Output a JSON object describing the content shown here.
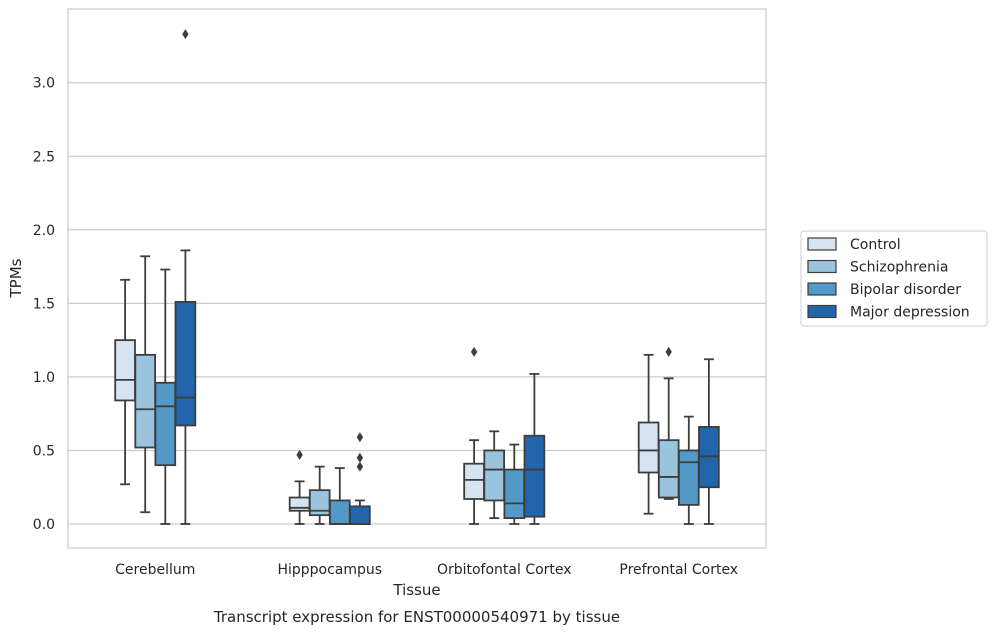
{
  "chart_data": {
    "type": "boxplot",
    "title": "",
    "caption": "Transcript expression for ENST00000540971 by tissue",
    "xlabel": "Tissue",
    "ylabel": "TPMs",
    "ylim": [
      -0.16,
      3.5
    ],
    "yticks": [
      0.0,
      0.5,
      1.0,
      1.5,
      2.0,
      2.5,
      3.0
    ],
    "ytick_labels": [
      "0.0",
      "0.5",
      "1.0",
      "1.5",
      "2.0",
      "2.5",
      "3.0"
    ],
    "grid": "horizontal",
    "legend_position": "right",
    "categories": [
      "Cerebellum",
      "Hipppocampus",
      "Orbitofontal Cortex",
      "Prefrontal Cortex"
    ],
    "series": [
      {
        "name": "Control",
        "color": "#d6e4f2",
        "boxes": [
          {
            "whislo": 0.27,
            "q1": 0.84,
            "med": 0.98,
            "q3": 1.25,
            "whishi": 1.66,
            "fliers": []
          },
          {
            "whislo": 0.0,
            "q1": 0.09,
            "med": 0.11,
            "q3": 0.18,
            "whishi": 0.29,
            "fliers": [
              0.47
            ]
          },
          {
            "whislo": 0.0,
            "q1": 0.17,
            "med": 0.3,
            "q3": 0.41,
            "whishi": 0.57,
            "fliers": [
              1.17
            ]
          },
          {
            "whislo": 0.07,
            "q1": 0.35,
            "med": 0.5,
            "q3": 0.69,
            "whishi": 1.15,
            "fliers": []
          }
        ]
      },
      {
        "name": "Schizophrenia",
        "color": "#9ac3de",
        "boxes": [
          {
            "whislo": 0.08,
            "q1": 0.52,
            "med": 0.78,
            "q3": 1.15,
            "whishi": 1.82,
            "fliers": []
          },
          {
            "whislo": 0.0,
            "q1": 0.06,
            "med": 0.09,
            "q3": 0.23,
            "whishi": 0.39,
            "fliers": []
          },
          {
            "whislo": 0.04,
            "q1": 0.16,
            "med": 0.37,
            "q3": 0.5,
            "whishi": 0.63,
            "fliers": []
          },
          {
            "whislo": 0.17,
            "q1": 0.18,
            "med": 0.32,
            "q3": 0.57,
            "whishi": 0.99,
            "fliers": [
              1.17
            ]
          }
        ]
      },
      {
        "name": "Bipolar disorder",
        "color": "#5299c8",
        "boxes": [
          {
            "whislo": 0.0,
            "q1": 0.4,
            "med": 0.8,
            "q3": 0.96,
            "whishi": 1.73,
            "fliers": []
          },
          {
            "whislo": 0.0,
            "q1": 0.0,
            "med": 0.0,
            "q3": 0.16,
            "whishi": 0.38,
            "fliers": []
          },
          {
            "whislo": 0.0,
            "q1": 0.04,
            "med": 0.14,
            "q3": 0.37,
            "whishi": 0.54,
            "fliers": []
          },
          {
            "whislo": 0.0,
            "q1": 0.13,
            "med": 0.42,
            "q3": 0.5,
            "whishi": 0.73,
            "fliers": []
          }
        ]
      },
      {
        "name": "Major depression",
        "color": "#2166ac",
        "boxes": [
          {
            "whislo": 0.0,
            "q1": 0.67,
            "med": 0.86,
            "q3": 1.51,
            "whishi": 1.86,
            "fliers": [
              3.33
            ]
          },
          {
            "whislo": 0.0,
            "q1": 0.0,
            "med": 0.0,
            "q3": 0.12,
            "whishi": 0.16,
            "fliers": [
              0.39,
              0.45,
              0.59
            ]
          },
          {
            "whislo": 0.0,
            "q1": 0.05,
            "med": 0.37,
            "q3": 0.6,
            "whishi": 1.02,
            "fliers": []
          },
          {
            "whislo": 0.0,
            "q1": 0.25,
            "med": 0.46,
            "q3": 0.66,
            "whishi": 1.12,
            "fliers": []
          }
        ]
      }
    ]
  }
}
